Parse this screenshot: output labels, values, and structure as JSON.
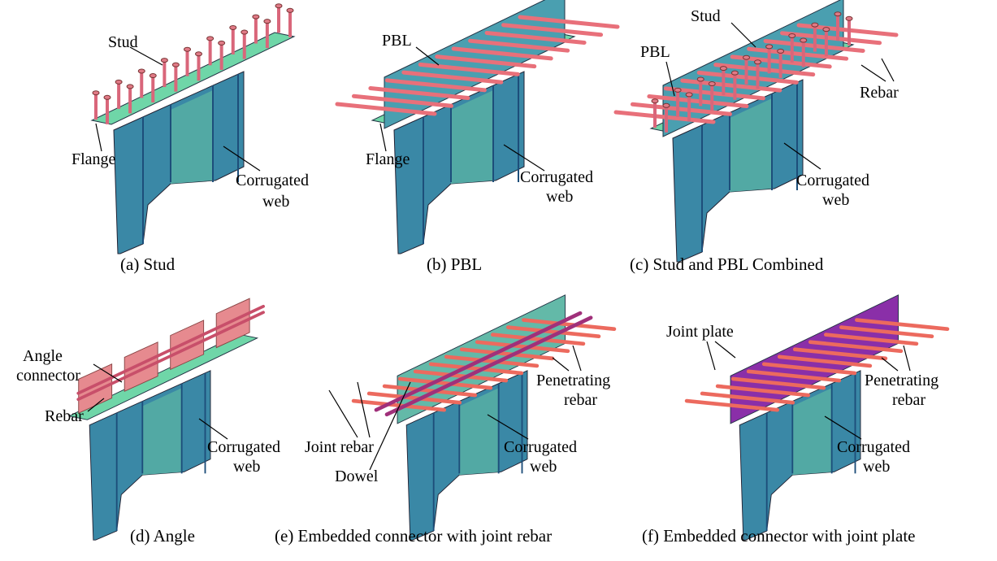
{
  "panels": [
    {
      "caption": "(a) Stud",
      "labels": [
        [
          "Stud"
        ],
        [
          "Flange"
        ],
        [
          "Corrugated",
          "web"
        ]
      ]
    },
    {
      "caption": "(b) PBL",
      "labels": [
        [
          "PBL"
        ],
        [
          "Flange"
        ],
        [
          "Corrugated",
          "web"
        ]
      ]
    },
    {
      "caption": "(c) Stud and PBL Combined",
      "labels": [
        [
          "Stud"
        ],
        [
          "PBL"
        ],
        [
          "Rebar"
        ],
        [
          "Corrugated",
          "web"
        ]
      ]
    },
    {
      "caption": "(d) Angle",
      "labels": [
        [
          "Angle",
          "connector"
        ],
        [
          "Rebar"
        ],
        [
          "Corrugated",
          "web"
        ]
      ]
    },
    {
      "caption": "(e) Embedded connector with joint rebar",
      "labels": [
        [
          "Penetrating",
          "rebar"
        ],
        [
          "Joint rebar"
        ],
        [
          "Dowel"
        ],
        [
          "Corrugated",
          "web"
        ]
      ]
    },
    {
      "caption": "(f) Embedded connector with joint plate",
      "labels": [
        [
          "Joint plate"
        ],
        [
          "Penetrating",
          "rebar"
        ],
        [
          "Corrugated",
          "web"
        ]
      ]
    }
  ]
}
